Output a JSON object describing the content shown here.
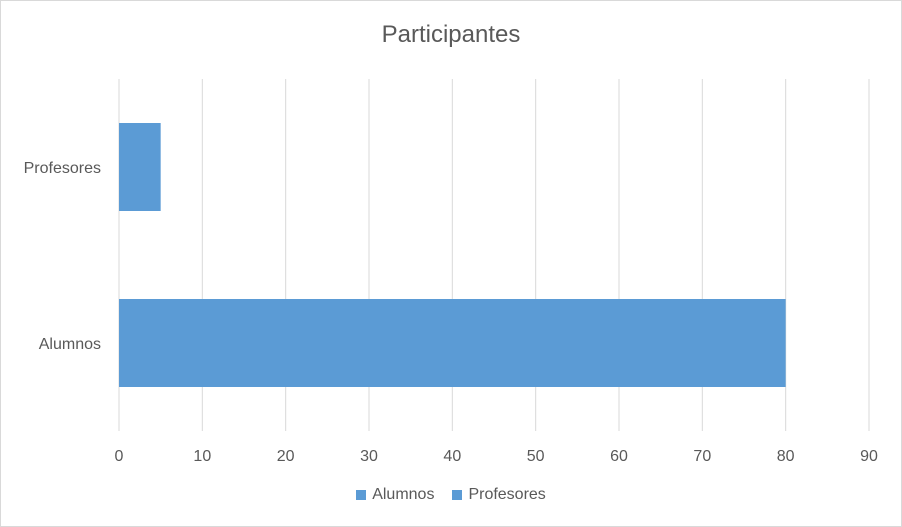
{
  "chart_data": {
    "type": "bar",
    "orientation": "horizontal",
    "title": "Participantes",
    "categories": [
      "Alumnos",
      "Profesores"
    ],
    "values": [
      80,
      5
    ],
    "xlim": [
      0,
      90
    ],
    "xticks": [
      0,
      10,
      20,
      30,
      40,
      50,
      60,
      70,
      80,
      90
    ],
    "grid": "vertical",
    "legend_position": "bottom",
    "legend": [
      "Alumnos",
      "Profesores"
    ],
    "bar_color": "#5b9bd5",
    "grid_color": "#d9d9d9",
    "text_color": "#595959"
  }
}
